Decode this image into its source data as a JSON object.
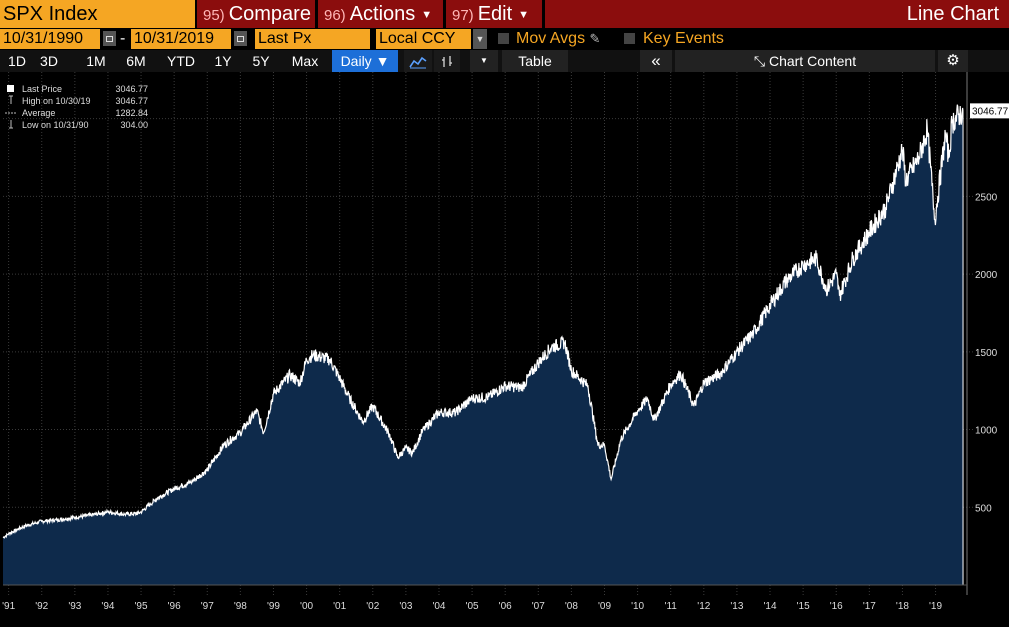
{
  "toolbar": {
    "ticker": "SPX Index",
    "compare_num": "95)",
    "compare": "Compare",
    "actions_num": "96)",
    "actions": "Actions",
    "edit_num": "97)",
    "edit": "Edit",
    "view_title": "Line Chart"
  },
  "fields": {
    "start_date": "10/31/1990",
    "end_date": "10/31/2019",
    "field": "Last Px",
    "currency": "Local CCY",
    "mov_avgs": "Mov Avgs",
    "key_events": "Key Events"
  },
  "ranges": {
    "items": [
      "1D",
      "3D",
      "1M",
      "6M",
      "YTD",
      "1Y",
      "5Y",
      "Max"
    ],
    "frequency": "Daily ▼",
    "table": "Table",
    "collapse": "«",
    "chart_content": "Chart Content"
  },
  "legend": {
    "rows": [
      {
        "label": "Last Price",
        "value": "3046.77"
      },
      {
        "label": "High on 10/30/19",
        "value": "3046.77"
      },
      {
        "label": "Average",
        "value": "1282.84"
      },
      {
        "label": "Low on 10/31/90",
        "value": "304.00"
      }
    ]
  },
  "chart_data": {
    "type": "area",
    "title": "",
    "ylim": [
      0,
      3300
    ],
    "y_ticks": [
      500,
      1000,
      1500,
      2000,
      2500,
      3000
    ],
    "y_tick_labels": [
      "500",
      "1000",
      "1500",
      "2000",
      "2500"
    ],
    "last_value_label": "3046.77",
    "x_ticks": [
      "'91",
      "'92",
      "'93",
      "'94",
      "'95",
      "'96",
      "'97",
      "'98",
      "'99",
      "'00",
      "'01",
      "'02",
      "'03",
      "'04",
      "'05",
      "'06",
      "'07",
      "'08",
      "'09",
      "'10",
      "'11",
      "'12",
      "'13",
      "'14",
      "'15",
      "'16",
      "'17",
      "'18",
      "'19"
    ],
    "grid": true,
    "colors": {
      "fill": "#0e2a4b",
      "line": "#ffffff",
      "grid": "#3a3a3a"
    },
    "series": [
      {
        "x": [
          1990.83,
          1991.0,
          1991.5,
          1992.0,
          1992.5,
          1993.0,
          1993.5,
          1994.0,
          1994.5,
          1994.9,
          1995.0,
          1995.5,
          1996.0,
          1996.5,
          1997.0,
          1997.5,
          1997.8,
          1998.0,
          1998.5,
          1998.7,
          1999.0,
          1999.5,
          1999.8,
          2000.0,
          2000.2,
          2000.7,
          2001.0,
          2001.3,
          2001.7,
          2002.0,
          2002.5,
          2002.75,
          2003.0,
          2003.2,
          2003.5,
          2004.0,
          2004.5,
          2005.0,
          2005.5,
          2006.0,
          2006.5,
          2007.0,
          2007.4,
          2007.8,
          2008.0,
          2008.5,
          2008.8,
          2009.0,
          2009.2,
          2009.5,
          2010.0,
          2010.3,
          2010.5,
          2011.0,
          2011.3,
          2011.7,
          2012.0,
          2012.5,
          2013.0,
          2013.5,
          2014.0,
          2014.5,
          2015.0,
          2015.4,
          2015.7,
          2016.0,
          2016.1,
          2016.5,
          2017.0,
          2017.5,
          2018.0,
          2018.1,
          2018.5,
          2018.75,
          2018.98,
          2019.3,
          2019.4,
          2019.5,
          2019.83
        ],
        "y": [
          304,
          330,
          380,
          410,
          420,
          435,
          450,
          470,
          455,
          460,
          470,
          560,
          620,
          660,
          740,
          900,
          950,
          980,
          1120,
          980,
          1230,
          1350,
          1300,
          1450,
          1480,
          1450,
          1330,
          1200,
          1050,
          1150,
          970,
          820,
          880,
          850,
          990,
          1110,
          1110,
          1200,
          1210,
          1280,
          1270,
          1430,
          1530,
          1560,
          1380,
          1280,
          900,
          900,
          680,
          940,
          1120,
          1200,
          1060,
          1290,
          1360,
          1150,
          1300,
          1360,
          1500,
          1620,
          1800,
          1960,
          2060,
          2100,
          1900,
          2000,
          1860,
          2100,
          2270,
          2430,
          2800,
          2600,
          2750,
          2930,
          2350,
          2900,
          2750,
          2980,
          3046.77
        ]
      }
    ]
  }
}
